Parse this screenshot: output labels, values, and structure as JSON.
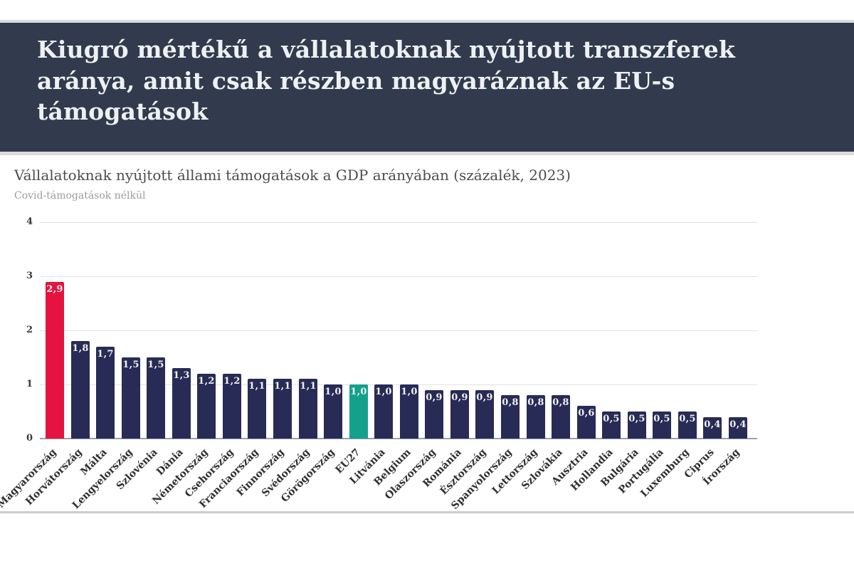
{
  "header": {
    "title": "Kiugró mértékű a vállalatoknak nyújtott transzferek\naránya, amit csak részben magyaráznak az EU-s\ntámogatások"
  },
  "chart_data": {
    "type": "bar",
    "title": "Vállalatoknak nyújtott állami támogatások a GDP arányában (százalék, 2023)",
    "subtitle": "Covid-támogatások nélkül",
    "categories": [
      "Magyarország",
      "Horvátország",
      "Málta",
      "Lengyelország",
      "Szlovénia",
      "Dánia",
      "Németország",
      "Csehország",
      "Franciaország",
      "Finnország",
      "Svédország",
      "Görögország",
      "EU27",
      "Litvánia",
      "Belgium",
      "Olaszország",
      "Románia",
      "Észtország",
      "Spanyolország",
      "Lettország",
      "Szlovákia",
      "Ausztria",
      "Hollandia",
      "Bulgária",
      "Portugália",
      "Luxemburg",
      "Ciprus",
      "Írország"
    ],
    "values": [
      2.9,
      1.8,
      1.7,
      1.5,
      1.5,
      1.3,
      1.2,
      1.2,
      1.1,
      1.1,
      1.1,
      1.0,
      1.0,
      1.0,
      1.0,
      0.9,
      0.9,
      0.9,
      0.8,
      0.8,
      0.8,
      0.6,
      0.5,
      0.5,
      0.5,
      0.5,
      0.4,
      0.4
    ],
    "decimal_separator": ",",
    "xlabel": "",
    "ylabel": "",
    "ylim": [
      0,
      4
    ],
    "yticks": [
      0,
      1,
      2,
      3,
      4
    ],
    "grid": true,
    "legend": false,
    "colors": {
      "bar_default": "#282b55",
      "highlights": {
        "Magyarország": "#e4133f",
        "EU27": "#14a18c"
      },
      "header_background": "#313b4d",
      "title_text": "#eef1f4",
      "value_label_text": "#ffffff"
    }
  }
}
